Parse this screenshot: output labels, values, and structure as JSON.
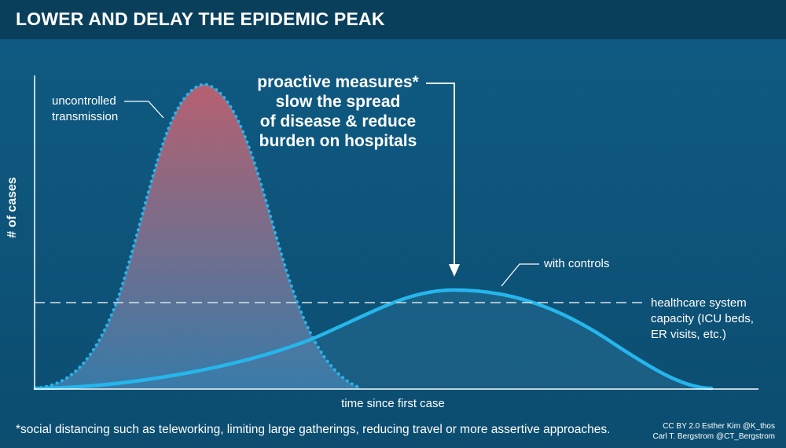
{
  "header": {
    "title": "LOWER AND DELAY THE EPIDEMIC PEAK"
  },
  "callout": {
    "line1": "proactive measures*",
    "line2": "slow the spread",
    "line3": "of disease & reduce",
    "line4": "burden on hospitals"
  },
  "curves": {
    "uncontrolled": {
      "label_line1": "uncontrolled",
      "label_line2": "transmission"
    },
    "controlled": {
      "label": "with controls"
    }
  },
  "capacity": {
    "line1": "healthcare system",
    "line2": "capacity (ICU beds,",
    "line3": "ER visits, etc.)"
  },
  "axes": {
    "x_label": "time since first case",
    "y_label": "# of cases"
  },
  "footnote": "*social distancing such as teleworking, limiting large gatherings, reducing travel or more assertive approaches.",
  "credits": {
    "line1": "CC BY 2.0  Esther Kim  @K_thos",
    "line2": "Carl T. Bergstrom  @CT_Bergstrom"
  },
  "colors": {
    "background": "#0d5278",
    "header": "#0a3f5c",
    "curve_line": "#25b6ec",
    "peak_fill_top": "#c8616e",
    "peak_fill_bottom": "#3d7fad",
    "dashed_line": "#d9e4ec"
  }
}
